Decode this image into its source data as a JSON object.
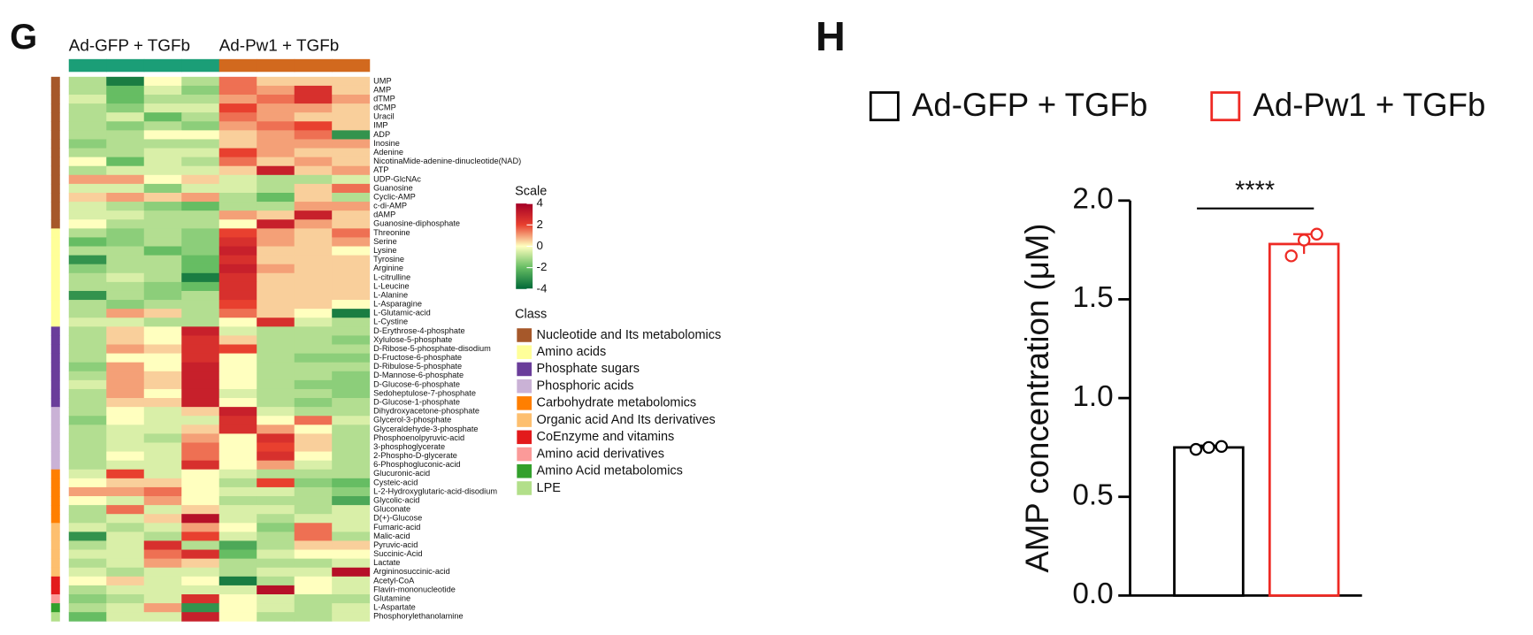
{
  "chart_data": [
    {
      "type": "heatmap",
      "panel": "G",
      "groups": [
        {
          "name": "Ad-GFP + TGFb",
          "color": "#1b9e77"
        },
        {
          "name": "Ad-Pw1 + TGFb",
          "color": "#d2691e"
        }
      ],
      "column_groups": [
        0,
        0,
        0,
        0,
        1,
        1,
        1,
        1
      ],
      "rows": [
        "UMP",
        "AMP",
        "dTMP",
        "dCMP",
        "Uracil",
        "IMP",
        "ADP",
        "Inosine",
        "Adenine",
        "NicotinaMide-adenine-dinucleotide(NAD)",
        "ATP",
        "UDP-GlcNAc",
        "Guanosine",
        "Cyclic-AMP",
        "c-di-AMP",
        "dAMP",
        "Guanosine-diphosphate",
        "Threonine",
        "Serine",
        "Lysine",
        "Tyrosine",
        "Arginine",
        "L-citrulline",
        "L-Leucine",
        "L-Alanine",
        "L-Asparagine",
        "L-Glutamic-acid",
        "L-Cystine",
        "D-Erythrose-4-phosphate",
        "Xylulose-5-phosphate",
        "D-Ribose-5-phosphate-disodium",
        "D-Fructose-6-phosphate",
        "D-Ribulose-5-phosphate",
        "D-Mannose-6-phosphate",
        "D-Glucose-6-phosphate",
        "Sedoheptulose-7-phosphate",
        "D-Glucose-1-phosphate",
        "Dihydroxyacetone-phosphate",
        "Glycerol-3-phosphate",
        "Glyceraldehyde-3-phosphate",
        "Phosphoenolpyruvic-acid",
        "3-phosphoglycerate",
        "2-Phospho-D-glycerate",
        "6-Phosphogluconic-acid",
        "Glucuronic-acid",
        "Cysteic-acid",
        "L-2-Hydroxyglutaric-acid-disodium",
        "Glycolic-acid",
        "Gluconate",
        "D(+)-Glucose",
        "Fumaric-acid",
        "Malic-acid",
        "Pyruvic-acid",
        "Succinic-Acid",
        "Lactate",
        "Argininosuccinic-acid",
        "Acetyl-CoA",
        "Flavin-mononucleotide",
        "Glutamine",
        "L-Aspartate",
        "Phosphorylethanolamine"
      ],
      "row_classes": [
        0,
        0,
        0,
        0,
        0,
        0,
        0,
        0,
        0,
        0,
        0,
        0,
        0,
        0,
        0,
        0,
        0,
        1,
        1,
        1,
        1,
        1,
        1,
        1,
        1,
        1,
        1,
        1,
        2,
        2,
        2,
        2,
        2,
        2,
        2,
        2,
        2,
        3,
        3,
        3,
        3,
        3,
        3,
        3,
        4,
        4,
        4,
        4,
        4,
        4,
        5,
        5,
        5,
        5,
        5,
        5,
        6,
        6,
        7,
        8,
        9
      ],
      "values": [
        [
          -1,
          -3.5,
          0,
          -1,
          1.5,
          0.5,
          0.5,
          0.5
        ],
        [
          -1,
          -2,
          -0.5,
          -1.5,
          1.5,
          1,
          2.5,
          0.5
        ],
        [
          -0.5,
          -2,
          -1,
          -1,
          1,
          1.5,
          2.5,
          1
        ],
        [
          -1,
          -1.5,
          -0.5,
          -0.5,
          2,
          1,
          1,
          0.5
        ],
        [
          -1,
          -0.5,
          -2,
          -1,
          1.5,
          1,
          0.5,
          0.5
        ],
        [
          -1,
          -1.5,
          -1,
          -1.5,
          1,
          1.5,
          2,
          0.5
        ],
        [
          -1,
          -1,
          0,
          0,
          0.5,
          1,
          1.5,
          -3
        ],
        [
          -1.5,
          -1,
          -1,
          -1,
          0.5,
          1,
          1,
          1
        ],
        [
          -1,
          -1,
          -0.5,
          -0.5,
          2,
          1,
          0.5,
          0.5
        ],
        [
          0,
          -2,
          -0.5,
          -1,
          1.5,
          0.5,
          1,
          0.5
        ],
        [
          -1,
          -0.5,
          -0.5,
          -0.5,
          0.5,
          3,
          0.5,
          1
        ],
        [
          1,
          1,
          0,
          0.5,
          -0.5,
          -1,
          -1,
          -0.5
        ],
        [
          -0.5,
          -0.5,
          -1.5,
          -0.5,
          -0.5,
          -1,
          0.5,
          1.5
        ],
        [
          0.5,
          1,
          0.5,
          1,
          -1,
          -2,
          0.5,
          -1
        ],
        [
          -0.5,
          -1,
          -1.5,
          -2,
          -1,
          -1,
          1,
          1
        ],
        [
          -0.5,
          -0.5,
          -1,
          -1,
          1,
          0.5,
          3,
          0.5
        ],
        [
          0,
          -1,
          -1,
          -1,
          0,
          3,
          1,
          0.5
        ],
        [
          -1,
          -1.5,
          -1,
          -1.5,
          2,
          1,
          0.5,
          1.5
        ],
        [
          -2,
          -1.5,
          -1,
          -1.5,
          2.5,
          1,
          0.5,
          1
        ],
        [
          -1,
          -1,
          -2,
          -1.5,
          3,
          0.5,
          0.5,
          0
        ],
        [
          -3,
          -1,
          -1,
          -2,
          2.5,
          0.5,
          0.5,
          0.5
        ],
        [
          -1.5,
          -1,
          -1,
          -2,
          3,
          1,
          0.5,
          0.5
        ],
        [
          -1,
          -0.5,
          -1,
          -3.5,
          2.5,
          0.5,
          0.5,
          0.5
        ],
        [
          -1,
          -1,
          -1.5,
          -2,
          2.5,
          0.5,
          0.5,
          0.5
        ],
        [
          -3,
          -1,
          -1.5,
          -1,
          2.5,
          0.5,
          0.5,
          0.5
        ],
        [
          -1,
          -1.5,
          -1,
          -1,
          2,
          0.5,
          0.5,
          0
        ],
        [
          -1,
          1,
          0.5,
          -1,
          1.5,
          0.5,
          0,
          -3.5
        ],
        [
          -0.5,
          -0.5,
          -1,
          -1,
          0,
          2.5,
          -0.5,
          -1
        ],
        [
          -1,
          0.5,
          0,
          3,
          -0.5,
          -1,
          -1,
          -1
        ],
        [
          -1,
          0.5,
          0,
          2.5,
          0.5,
          -1,
          -1,
          -1.5
        ],
        [
          -1,
          1,
          0.5,
          2.5,
          2,
          -1,
          -1,
          -1
        ],
        [
          -1,
          0,
          0,
          2.5,
          0,
          -1,
          -1.5,
          -1.5
        ],
        [
          -1.5,
          1,
          0,
          3,
          0,
          -1,
          -1,
          -1
        ],
        [
          -1,
          1,
          0.5,
          3,
          0,
          -1,
          -1,
          -1.5
        ],
        [
          -0.5,
          1,
          0.5,
          3,
          0,
          -1,
          -1.5,
          -1.5
        ],
        [
          -1,
          1,
          0,
          3,
          -0.5,
          -1,
          -1,
          -1.5
        ],
        [
          -1,
          0.5,
          0.5,
          3,
          0,
          -1,
          -1.5,
          -1
        ],
        [
          -1,
          0,
          -0.5,
          0.5,
          3,
          -0.5,
          -1,
          -1
        ],
        [
          -1.5,
          0,
          -0.5,
          -0.5,
          2.5,
          0,
          1.5,
          -0.5
        ],
        [
          -1,
          -0.5,
          -0.5,
          0.5,
          2.5,
          1,
          0,
          -1
        ],
        [
          -1,
          -0.5,
          -1,
          1,
          0,
          2.5,
          0.5,
          -1
        ],
        [
          -1,
          -0.5,
          -0.5,
          1.5,
          0,
          2,
          0.5,
          -1
        ],
        [
          -1,
          0,
          -0.5,
          1.5,
          0,
          2.5,
          0,
          -1
        ],
        [
          -1,
          -0.5,
          -0.5,
          2.5,
          0,
          1,
          -0.5,
          -1
        ],
        [
          -0.5,
          2,
          -0.5,
          0,
          -0.5,
          -1,
          -1,
          -1
        ],
        [
          0,
          0.5,
          0.5,
          0,
          -1,
          2,
          -1.5,
          -2
        ],
        [
          1,
          1,
          1.5,
          0,
          -0.5,
          -0.5,
          -1,
          -1.5
        ],
        [
          0,
          -0.5,
          1,
          0,
          -1,
          -1,
          -1,
          -2.5
        ],
        [
          -1,
          1.5,
          -0.5,
          0.5,
          -0.5,
          -0.5,
          -1,
          -0.5
        ],
        [
          -1,
          -0.5,
          0.5,
          3.5,
          -0.5,
          -1,
          -0.5,
          -0.5
        ],
        [
          -0.5,
          -1,
          -0.5,
          1,
          0,
          -1.5,
          1.5,
          -0.5
        ],
        [
          -3,
          -0.5,
          -1,
          2,
          -0.5,
          -1,
          1.5,
          -1
        ],
        [
          -1,
          -0.5,
          2.5,
          -1,
          -2.5,
          -1,
          0.5,
          0.5
        ],
        [
          -0.5,
          -0.5,
          1.5,
          2.5,
          -2,
          -0.5,
          0,
          0
        ],
        [
          -1,
          -0.5,
          1,
          0.5,
          -1,
          -1,
          -1,
          -0.5
        ],
        [
          -0.5,
          -1,
          -0.5,
          -0.5,
          -1,
          -0.5,
          -0.5,
          3.5
        ],
        [
          0,
          0.5,
          -0.5,
          0,
          -3.5,
          -1,
          0,
          -0.5
        ],
        [
          -1,
          -0.5,
          -0.5,
          -0.5,
          -0.5,
          3.5,
          0,
          -0.5
        ],
        [
          -1.5,
          -1,
          -0.5,
          2.5,
          0,
          -0.5,
          -1,
          -1
        ],
        [
          -1,
          -0.5,
          1,
          -3,
          0,
          -0.5,
          -1,
          -0.5
        ],
        [
          -2,
          -0.5,
          -0.5,
          3,
          0,
          -1,
          -1,
          -0.5
        ]
      ],
      "zlim": [
        -4,
        4
      ],
      "colorscale": {
        "title": "Scale",
        "ticks": [
          4,
          2,
          0,
          -2,
          -4
        ],
        "colors": [
          "#a50026",
          "#e8402f",
          "#ffffbf",
          "#66bd63",
          "#006837"
        ]
      },
      "class_title": "Class",
      "classes": [
        {
          "name": "Nucleotide and Its metabolomics",
          "color": "#a6582a"
        },
        {
          "name": "Amino acids",
          "color": "#ffff99"
        },
        {
          "name": "Phosphate sugars",
          "color": "#6a3d9a"
        },
        {
          "name": "Phosphoric acids",
          "color": "#cab2d6"
        },
        {
          "name": "Carbohydrate metabolomics",
          "color": "#ff7f00"
        },
        {
          "name": "Organic acid And Its derivatives",
          "color": "#fdbf6f"
        },
        {
          "name": "CoEnzyme and vitamins",
          "color": "#e31a1c"
        },
        {
          "name": "Amino acid derivatives",
          "color": "#fb9a99"
        },
        {
          "name": "Amino Acid metabolomics",
          "color": "#33a02c"
        },
        {
          "name": "LPE",
          "color": "#b2df8a"
        }
      ]
    },
    {
      "type": "bar",
      "panel": "H",
      "ylabel": "AMP concentration (μM)",
      "ylim": [
        0,
        2
      ],
      "yticks": [
        {
          "value": 0,
          "label": "0.0"
        },
        0.5,
        {
          "value": 1,
          "label": "1.0"
        },
        1.5,
        {
          "value": 2,
          "label": "2.0"
        }
      ],
      "series": [
        {
          "name": "Ad-GFP + TGFb",
          "color": "#000000",
          "values": [
            0.75
          ],
          "errors": [
            0.01
          ],
          "points": [
            0.74,
            0.75,
            0.755
          ]
        },
        {
          "name": "Ad-Pw1 + TGFb",
          "color": "#ee2a24",
          "values": [
            1.78
          ],
          "errors": [
            0.05
          ],
          "points": [
            1.72,
            1.8,
            1.83
          ]
        }
      ],
      "annotation": "****"
    }
  ]
}
